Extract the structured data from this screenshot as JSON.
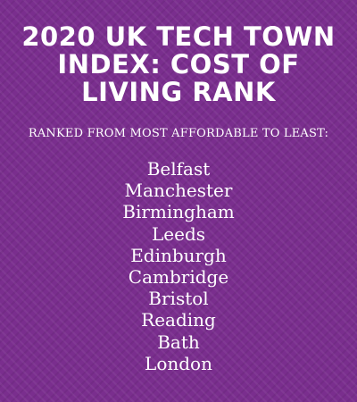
{
  "title": "2020 UK TECH TOWN INDEX: COST OF LIVING RANK",
  "subtitle": "RANKED FROM MOST AFFORDABLE TO LEAST:",
  "cities": [
    "Belfast",
    "Manchester",
    "Birmingham",
    "Leeds",
    "Edinburgh",
    "Cambridge",
    "Bristol",
    "Reading",
    "Bath",
    "London"
  ],
  "colors": {
    "background": "#7a2e8e",
    "text": "#ffffff"
  }
}
